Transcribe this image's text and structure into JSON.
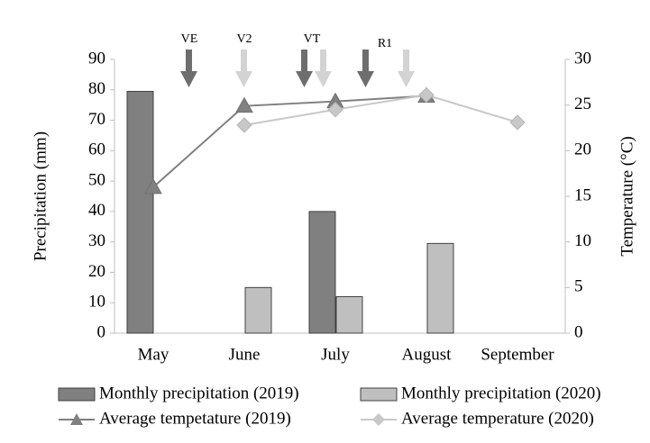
{
  "chart_data": {
    "type": "bar",
    "categories": [
      "May",
      "June",
      "July",
      "August",
      "September"
    ],
    "y_label": "Precipitation (mm)",
    "y2_label": "Temperature (°C)",
    "ylim": [
      0,
      90
    ],
    "yticks": [
      0,
      10,
      20,
      30,
      40,
      50,
      60,
      70,
      80,
      90
    ],
    "y2lim": [
      0,
      30
    ],
    "y2ticks": [
      0,
      5,
      10,
      15,
      20,
      25,
      30
    ],
    "annotations": [
      "VE",
      "V2",
      "VT",
      "R1"
    ],
    "series": [
      {
        "name": "Monthly precipitation (2019)",
        "type": "bar",
        "color": "#808080",
        "values": [
          79.5,
          null,
          40,
          null,
          null
        ]
      },
      {
        "name": "Monthly precipitation (2020)",
        "type": "bar",
        "color": "#bfbfbf",
        "values": [
          null,
          15,
          12,
          29.5,
          null
        ]
      },
      {
        "name": "Average tempetature (2019)",
        "type": "line",
        "marker": "triangle",
        "axis": "y2",
        "color": "#808080",
        "values": [
          16,
          24.9,
          25.4,
          26,
          null
        ]
      },
      {
        "name": "Average temperature (2020)",
        "type": "line",
        "marker": "diamond",
        "axis": "y2",
        "color": "#c8c8c8",
        "values": [
          null,
          22.8,
          24.5,
          26.1,
          23.1
        ]
      }
    ]
  }
}
